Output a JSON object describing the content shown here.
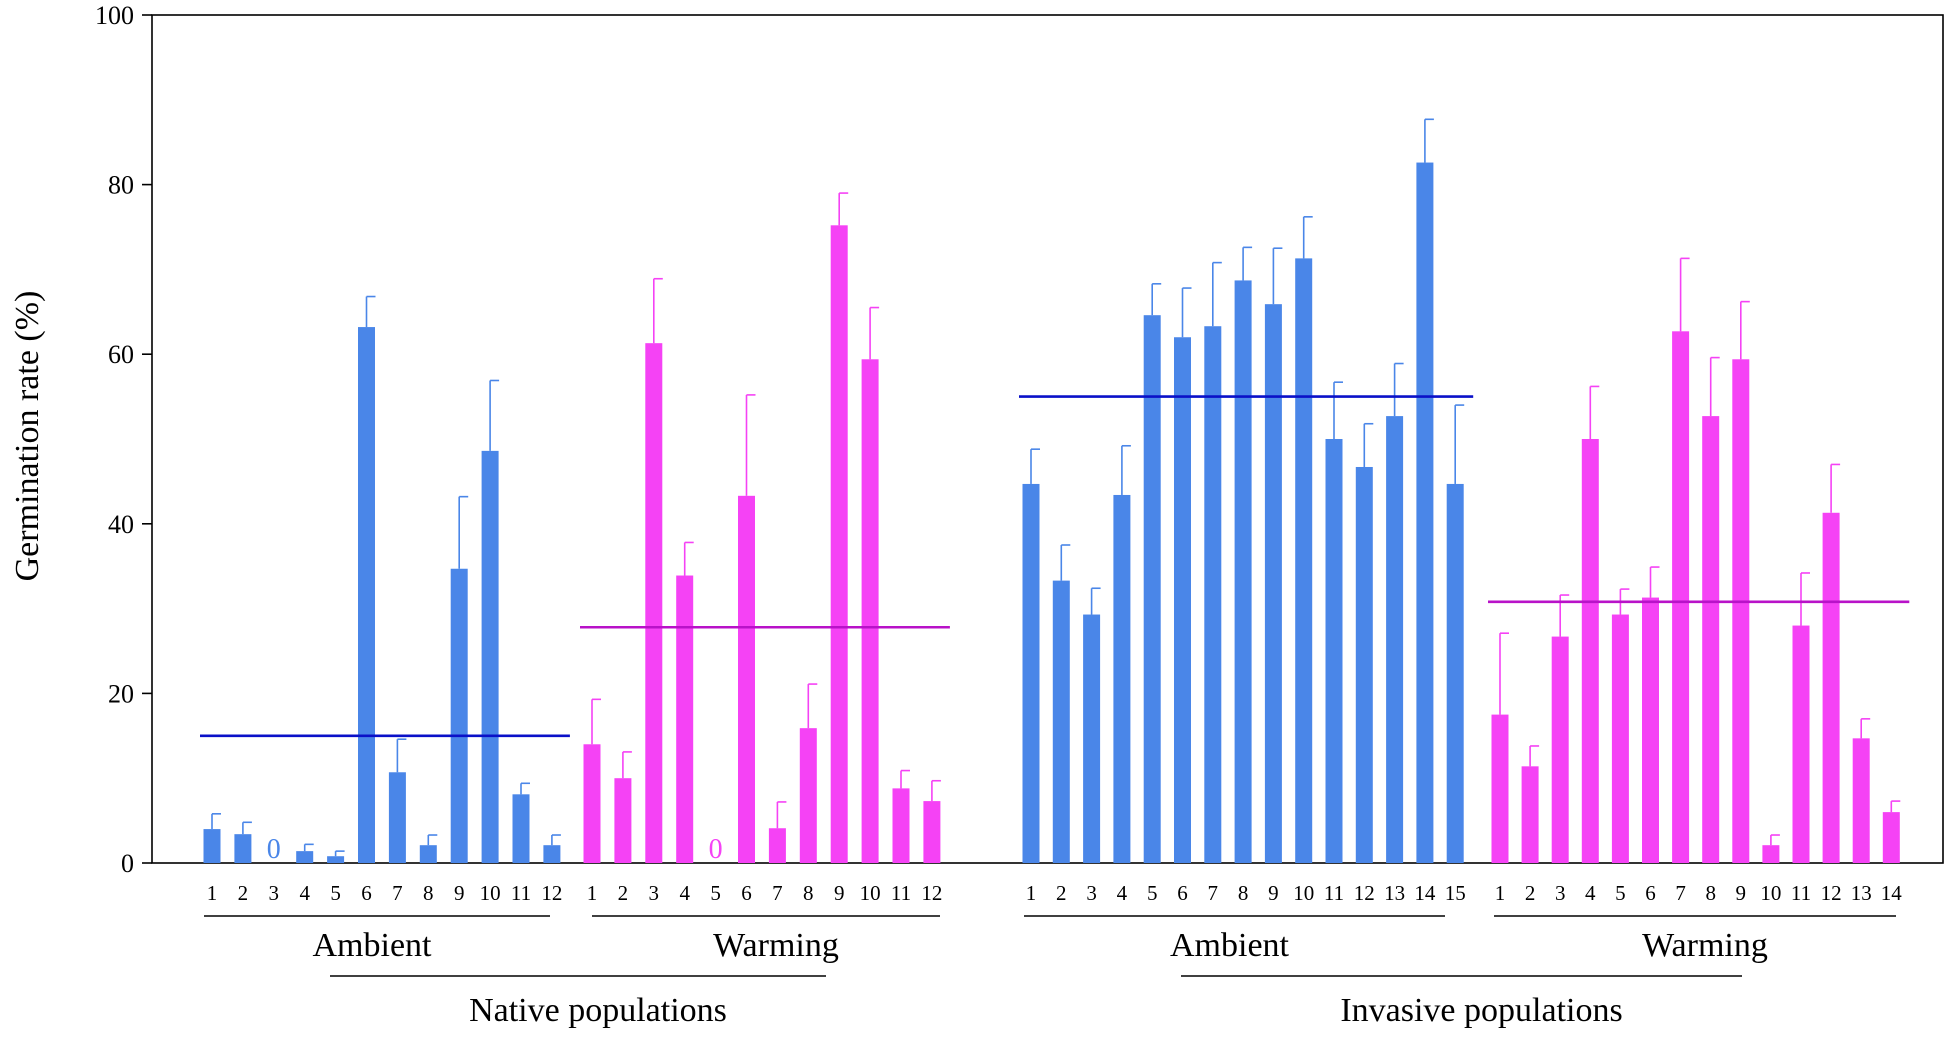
{
  "chart_data": {
    "type": "bar",
    "ylabel": "Germination rate (%)",
    "ylim": [
      0,
      100
    ],
    "yticks": [
      "0",
      "20",
      "40",
      "60",
      "80",
      "100"
    ],
    "colors": {
      "ambient": "#4A86E8",
      "warming": "#F542F5",
      "ambient_mean": "#0A10C8",
      "warming_mean": "#B812C8"
    },
    "populations": [
      {
        "name": "Native populations",
        "groups": [
          {
            "treatment": "Ambient",
            "color_key": "ambient",
            "mean": 15,
            "categories": [
              "1",
              "2",
              "3",
              "4",
              "5",
              "6",
              "7",
              "8",
              "9",
              "10",
              "11",
              "12"
            ],
            "values": [
              4,
              3.4,
              0,
              1.4,
              0.8,
              63.2,
              10.7,
              2.1,
              34.7,
              48.6,
              8.1,
              2.1
            ],
            "errors": [
              1.8,
              1.4,
              0,
              0.8,
              0.6,
              3.6,
              3.9,
              1.2,
              8.5,
              8.3,
              1.3,
              1.2
            ],
            "zero_label": "0"
          },
          {
            "treatment": "Warming",
            "color_key": "warming",
            "mean": 27.8,
            "categories": [
              "1",
              "2",
              "3",
              "4",
              "5",
              "6",
              "7",
              "8",
              "9",
              "10",
              "11",
              "12"
            ],
            "values": [
              14,
              10,
              61.3,
              33.9,
              0,
              43.3,
              4.1,
              15.9,
              75.2,
              59.4,
              8.8,
              7.3
            ],
            "errors": [
              5.3,
              3.1,
              7.6,
              3.9,
              0,
              11.9,
              3.1,
              5.2,
              3.8,
              6.1,
              2.1,
              2.4
            ],
            "zero_label": "0"
          }
        ]
      },
      {
        "name": "Invasive populations",
        "groups": [
          {
            "treatment": "Ambient",
            "color_key": "ambient",
            "mean": 55,
            "categories": [
              "1",
              "2",
              "3",
              "4",
              "5",
              "6",
              "7",
              "8",
              "9",
              "10",
              "11",
              "12",
              "13",
              "14",
              "15"
            ],
            "values": [
              44.7,
              33.3,
              29.3,
              43.4,
              64.6,
              62,
              63.3,
              68.7,
              65.9,
              71.3,
              50,
              46.7,
              52.7,
              82.6,
              44.7
            ],
            "errors": [
              4.1,
              4.2,
              3.1,
              5.8,
              3.7,
              5.8,
              7.5,
              3.9,
              6.6,
              4.9,
              6.7,
              5.1,
              6.2,
              5.1,
              9.3
            ]
          },
          {
            "treatment": "Warming",
            "color_key": "warming",
            "mean": 30.8,
            "categories": [
              "1",
              "2",
              "3",
              "4",
              "5",
              "6",
              "7",
              "8",
              "9",
              "10",
              "11",
              "12",
              "13",
              "14"
            ],
            "values": [
              17.5,
              11.4,
              26.7,
              50,
              29.3,
              31.3,
              62.7,
              52.7,
              59.4,
              2.1,
              28,
              41.3,
              14.7,
              6
            ],
            "errors": [
              9.6,
              2.4,
              4.9,
              6.2,
              3,
              3.6,
              8.6,
              6.9,
              6.8,
              1.2,
              6.2,
              5.7,
              2.3,
              1.3
            ]
          }
        ]
      }
    ]
  }
}
